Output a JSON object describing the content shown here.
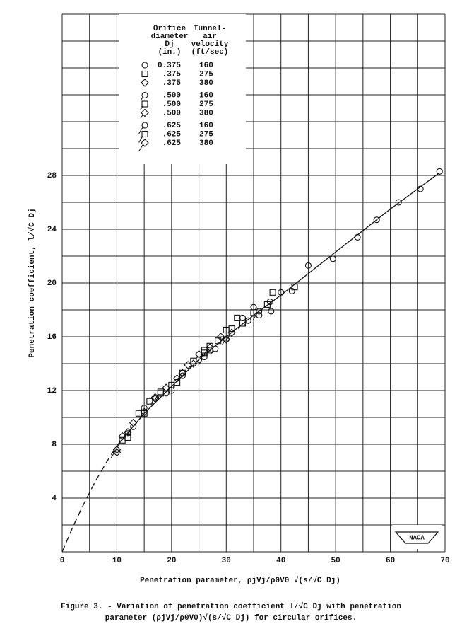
{
  "chart_data": {
    "type": "scatter",
    "xlabel": "Penetration parameter, ρjVj/ρ0V0 √(s/√C Dj)",
    "ylabel": "Penetration coefficient, l/√C Dj",
    "caption": [
      "Figure 3. - Variation of penetration coefficient l/√C Dj with penetration",
      "parameter (ρjVj/ρ0V0)√(s/√C Dj) for circular orifices."
    ],
    "logo": "NACA",
    "xlim": [
      0,
      70
    ],
    "ylim": [
      0,
      40
    ],
    "xticks": [
      0,
      10,
      20,
      30,
      40,
      50,
      60,
      70
    ],
    "yticks": [
      4,
      8,
      12,
      16,
      20,
      24,
      28
    ],
    "xgrid": [
      0,
      5,
      10,
      15,
      20,
      25,
      30,
      35,
      40,
      45,
      50,
      55,
      60,
      65,
      70
    ],
    "ygrid": [
      0,
      2,
      4,
      6,
      8,
      10,
      12,
      14,
      16,
      18,
      20,
      22,
      24,
      26,
      28,
      30,
      32,
      34,
      36,
      38,
      40
    ],
    "grid": true,
    "color": "#111111",
    "legend_headers": [
      [
        "Orifice",
        "diameter",
        "Dj",
        "(in.)"
      ],
      [
        "Tunnel-",
        "air",
        "velocity",
        "(ft/sec)"
      ]
    ],
    "series": [
      {
        "marker": "circle",
        "tail": "none",
        "diameter": {
          "value": 0.375,
          "label": "0.375"
        },
        "velocity": 160,
        "x": [
          69,
          65.5,
          61.5,
          57.5,
          54,
          49.5,
          45,
          42,
          40,
          38.2,
          38,
          36,
          35,
          33,
          30,
          27,
          25,
          22,
          19,
          15,
          12
        ],
        "values": [
          28.3,
          27,
          26,
          24.7,
          23.4,
          21.8,
          21.3,
          19.4,
          19.3,
          17.9,
          18.6,
          17.6,
          18.2,
          17.4,
          15.8,
          15,
          14.3,
          13.1,
          11.8,
          10.7,
          8.8
        ]
      },
      {
        "marker": "square",
        "tail": "none",
        "diameter": {
          "value": 0.375,
          "label": ".375"
        },
        "velocity": 275,
        "x": [
          42.5,
          38.5,
          37.5,
          35,
          32,
          31,
          30,
          28.5,
          26,
          24,
          22,
          20,
          18,
          16,
          14,
          12
        ],
        "values": [
          19.7,
          19.3,
          18.4,
          17.8,
          17.4,
          16.6,
          16.5,
          15.7,
          15,
          14.2,
          13.3,
          12.4,
          11.8,
          11.2,
          10.3,
          8.5
        ]
      },
      {
        "marker": "diamond",
        "tail": "none",
        "diameter": {
          "value": 0.375,
          "label": ".375"
        },
        "velocity": 380,
        "x": [
          29,
          27,
          25,
          23,
          21,
          19,
          17,
          15,
          13,
          11,
          10
        ],
        "values": [
          16,
          15.2,
          14.7,
          13.9,
          12.9,
          12.2,
          11.5,
          10.4,
          9.6,
          8.6,
          7.4
        ]
      },
      {
        "marker": "circle",
        "tail": "short",
        "diameter": {
          "value": 0.5,
          "label": ".500"
        },
        "velocity": 160,
        "x": [
          34,
          28,
          20
        ],
        "values": [
          17.2,
          15.1,
          12
        ]
      },
      {
        "marker": "square",
        "tail": "short",
        "diameter": {
          "value": 0.5,
          "label": ".500"
        },
        "velocity": 275,
        "x": [
          33,
          26,
          21,
          15
        ],
        "values": [
          17,
          14.8,
          12.6,
          10.3
        ]
      },
      {
        "marker": "diamond",
        "tail": "short",
        "diameter": {
          "value": 0.5,
          "label": ".500"
        },
        "velocity": 380,
        "x": [
          30,
          24,
          17,
          12
        ],
        "values": [
          15.8,
          14,
          11.4,
          8.9
        ]
      },
      {
        "marker": "circle",
        "tail": "long",
        "diameter": {
          "value": 0.625,
          "label": ".625"
        },
        "velocity": 160,
        "x": [
          36,
          26,
          13
        ],
        "values": [
          17.9,
          14.5,
          9.3
        ]
      },
      {
        "marker": "square",
        "tail": "long",
        "diameter": {
          "value": 0.625,
          "label": ".625"
        },
        "velocity": 275,
        "x": [
          27,
          18,
          11
        ],
        "values": [
          15.3,
          11.9,
          8.3
        ]
      },
      {
        "marker": "diamond",
        "tail": "long",
        "diameter": {
          "value": 0.625,
          "label": ".625"
        },
        "velocity": 380,
        "x": [
          31,
          22,
          10
        ],
        "values": [
          16.3,
          13.3,
          7.6
        ]
      }
    ],
    "fit": {
      "x": [
        10,
        15,
        20,
        25,
        30,
        35,
        40,
        45,
        50,
        55,
        60,
        65,
        69
      ],
      "y": [
        7.9,
        10.3,
        12.3,
        14.3,
        16,
        17.6,
        19.1,
        20.7,
        22.3,
        23.9,
        25.5,
        27,
        28.2
      ]
    },
    "extrapolation": {
      "x": [
        0,
        2,
        4,
        6,
        8,
        10
      ],
      "y": [
        0,
        1.9,
        3.6,
        5.2,
        6.6,
        7.9
      ]
    }
  }
}
